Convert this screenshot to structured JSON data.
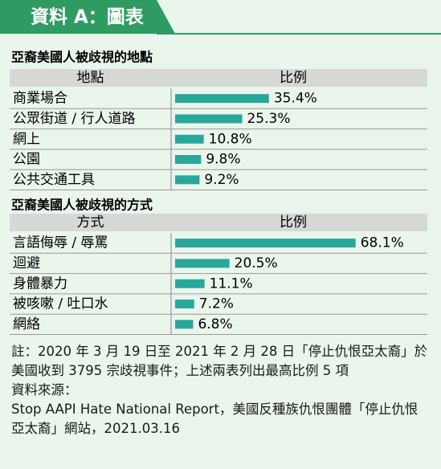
{
  "header": {
    "title": "資料 A：圖表"
  },
  "chart_data": [
    {
      "type": "bar",
      "orientation": "horizontal",
      "title": "亞裔美國人被歧視的地點",
      "column_headers": [
        "地點",
        "比例"
      ],
      "categories": [
        "商業場合",
        "公眾街道 / 行人道路",
        "網上",
        "公園",
        "公共交通工具"
      ],
      "values": [
        35.4,
        25.3,
        10.8,
        9.8,
        9.2
      ],
      "value_labels": [
        "35.4%",
        "25.3%",
        "10.8%",
        "9.8%",
        "9.2%"
      ],
      "color": "#2aa79b"
    },
    {
      "type": "bar",
      "orientation": "horizontal",
      "title": "亞裔美國人被歧視的方式",
      "column_headers": [
        "方式",
        "比例"
      ],
      "categories": [
        "言語侮辱 / 辱罵",
        "迴避",
        "身體暴力",
        "被咳嗽 / 吐口水",
        "網絡"
      ],
      "values": [
        68.1,
        20.5,
        11.1,
        7.2,
        6.8
      ],
      "value_labels": [
        "68.1%",
        "20.5%",
        "11.1%",
        "7.2%",
        "6.8%"
      ],
      "color": "#2aa79b"
    }
  ],
  "notes": {
    "note": "註：2020 年 3 月 19 日至 2021 年 2 月 28 日「停止仇恨亞太裔」於美國收到 3795 宗歧視事件；上述兩表列出最高比例 5 項",
    "source_label": "資料來源：",
    "source": "Stop AAPI Hate National Report，美國反種族仇恨團體「停止仇恨亞太裔」網站，2021.03.16"
  }
}
